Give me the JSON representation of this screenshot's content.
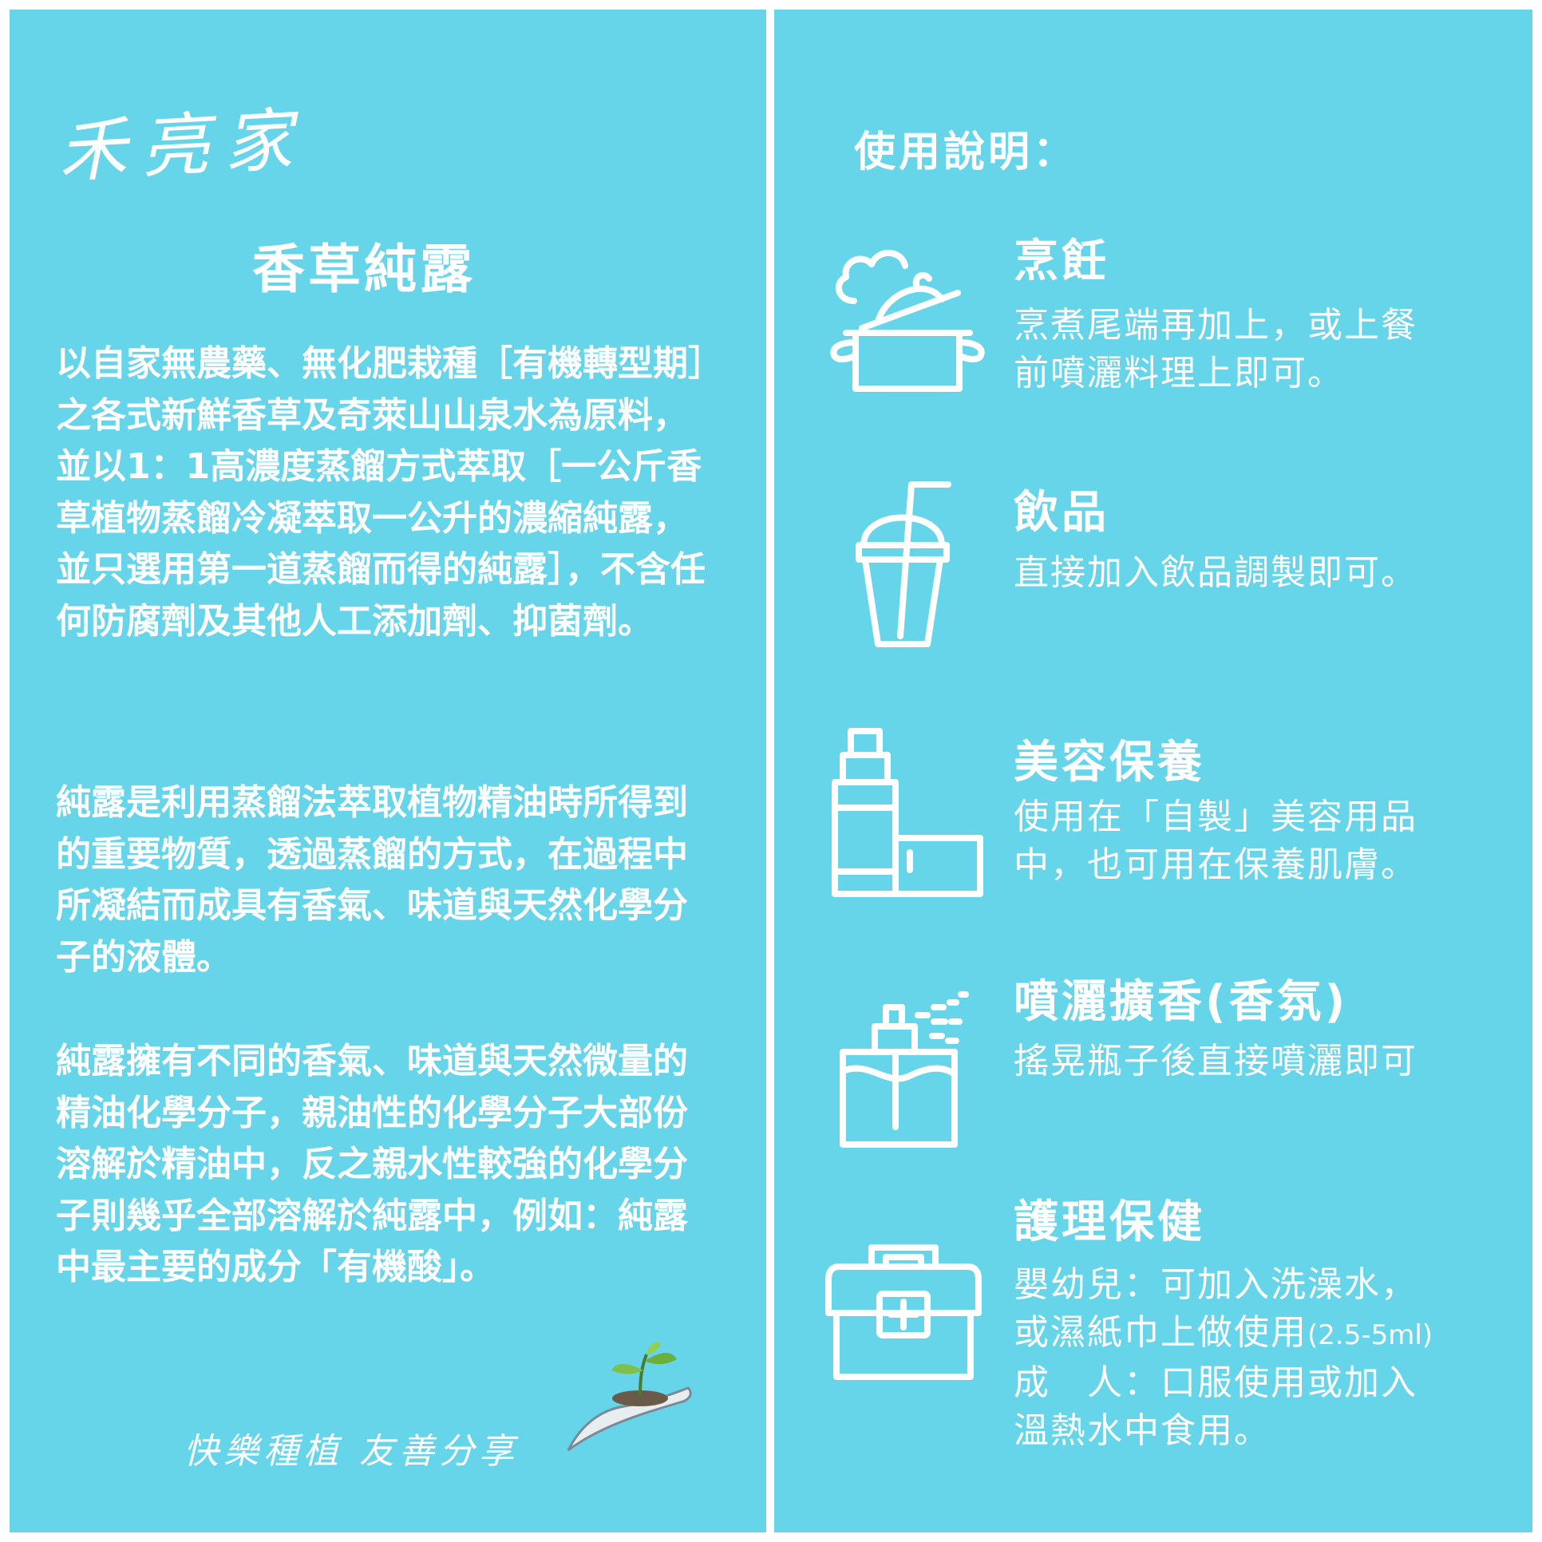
{
  "left": {
    "brand": "禾亮家",
    "title": "香草純露",
    "paragraph1": "以自家無農藥、無化肥栽種［有機轉型期］之各式新鮮香草及奇萊山山泉水為原料，並以1：1高濃度蒸餾方式萃取［一公斤香草植物蒸餾冷凝萃取一公升的濃縮純露，並只選用第一道蒸餾而得的純露］，不含任何防腐劑及其他人工添加劑、抑菌劑。",
    "paragraph2": "純露是利用蒸餾法萃取植物精油時所得到的重要物質，透過蒸餾的方式，在過程中所凝結而成具有香氣、味道與天然化學分子的液體。",
    "paragraph3": "純露擁有不同的香氣、味道與天然微量的精油化學分子，親油性的化學分子大部份溶解於精油中，反之親水性較強的化學分子則幾乎全部溶解於純露中，例如：純露中最主要的成分「有機酸」。",
    "slogan": "快樂種植 友善分享"
  },
  "right": {
    "usage_title": "使用說明：",
    "sections": [
      {
        "title": "烹飪",
        "icon": "cooking-pot-icon",
        "lines": [
          "烹煮尾端再加上，或上餐",
          "前噴灑料理上即可。"
        ]
      },
      {
        "title": "飲品",
        "icon": "drink-cup-icon",
        "lines": [
          "直接加入飲品調製即可。"
        ]
      },
      {
        "title": "美容保養",
        "icon": "cosmetics-icon",
        "lines": [
          "使用在「自製」美容用品",
          "中，也可用在保養肌膚。"
        ]
      },
      {
        "title": "噴灑擴香(香氛)",
        "icon": "spray-bottle-icon",
        "lines": [
          "搖晃瓶子後直接噴灑即可"
        ]
      },
      {
        "title": "護理保健",
        "icon": "first-aid-kit-icon",
        "lines": [
          "嬰幼兒：可加入洗澡水，",
          "或濕紙巾上做使用",
          "成　人：口服使用或加入",
          "溫熱水中食用。"
        ],
        "note": "(2.5-5ml)"
      }
    ]
  }
}
